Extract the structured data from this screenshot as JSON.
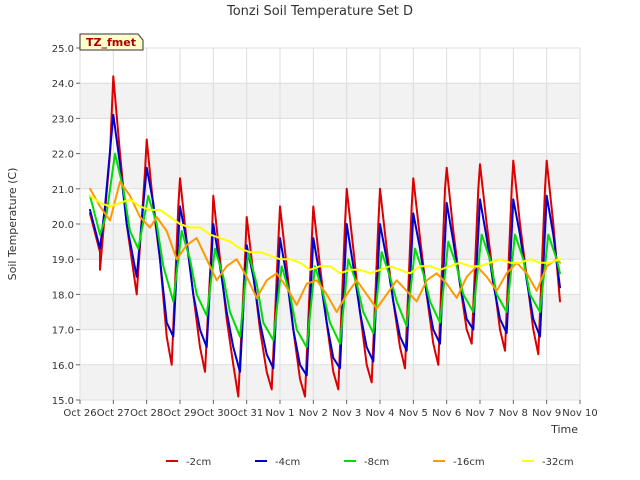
{
  "chart_data": {
    "type": "line",
    "title": "Tonzi Soil Temperature Set D",
    "xlabel": "Time",
    "ylabel": "Soil Temperature (C)",
    "annotation": "TZ_fmet",
    "ylim": [
      15.0,
      25.0
    ],
    "yticks": [
      15.0,
      16.0,
      17.0,
      18.0,
      19.0,
      20.0,
      21.0,
      22.0,
      23.0,
      24.0,
      25.0
    ],
    "ytick_labels": [
      "15.0",
      "16.0",
      "17.0",
      "18.0",
      "19.0",
      "20.0",
      "21.0",
      "22.0",
      "23.0",
      "24.0",
      "25.0"
    ],
    "xlim": [
      0,
      15
    ],
    "xtick_labels": [
      "Oct 26",
      "Oct 27",
      "Oct 28",
      "Oct 29",
      "Oct 30",
      "Oct 31",
      "Nov 1",
      "Nov 2",
      "Nov 3",
      "Nov 4",
      "Nov 5",
      "Nov 6",
      "Nov 7",
      "Nov 8",
      "Nov 9",
      "Nov 10"
    ],
    "grid": true,
    "legend_position": "bottom",
    "series": [
      {
        "name": "-2cm",
        "color": "#dd0000",
        "points": [
          [
            0.3,
            20.3
          ],
          [
            0.6,
            19.2
          ],
          [
            0.6,
            18.7
          ],
          [
            0.9,
            22.0
          ],
          [
            1.0,
            24.2
          ],
          [
            1.2,
            22.0
          ],
          [
            1.4,
            20.0
          ],
          [
            1.7,
            18.0
          ],
          [
            1.95,
            21.5
          ],
          [
            2.0,
            22.4
          ],
          [
            2.2,
            20.5
          ],
          [
            2.4,
            19.0
          ],
          [
            2.6,
            16.8
          ],
          [
            2.75,
            16.0
          ],
          [
            2.95,
            20.5
          ],
          [
            3.0,
            21.3
          ],
          [
            3.2,
            19.5
          ],
          [
            3.4,
            18.0
          ],
          [
            3.6,
            16.5
          ],
          [
            3.75,
            15.8
          ],
          [
            3.95,
            19.5
          ],
          [
            4.0,
            20.8
          ],
          [
            4.2,
            19.0
          ],
          [
            4.4,
            17.3
          ],
          [
            4.6,
            16.0
          ],
          [
            4.75,
            15.1
          ],
          [
            4.95,
            19.0
          ],
          [
            5.0,
            20.2
          ],
          [
            5.2,
            18.6
          ],
          [
            5.4,
            17.0
          ],
          [
            5.6,
            15.8
          ],
          [
            5.75,
            15.3
          ],
          [
            5.95,
            19.5
          ],
          [
            6.0,
            20.5
          ],
          [
            6.2,
            18.8
          ],
          [
            6.4,
            17.0
          ],
          [
            6.6,
            15.6
          ],
          [
            6.75,
            15.1
          ],
          [
            6.95,
            19.5
          ],
          [
            7.0,
            20.5
          ],
          [
            7.2,
            18.8
          ],
          [
            7.4,
            17.2
          ],
          [
            7.6,
            15.8
          ],
          [
            7.75,
            15.3
          ],
          [
            7.95,
            20.0
          ],
          [
            8.0,
            21.0
          ],
          [
            8.2,
            19.3
          ],
          [
            8.4,
            17.5
          ],
          [
            8.6,
            16.0
          ],
          [
            8.75,
            15.5
          ],
          [
            8.95,
            20.0
          ],
          [
            9.0,
            21.0
          ],
          [
            9.2,
            19.3
          ],
          [
            9.4,
            17.8
          ],
          [
            9.6,
            16.5
          ],
          [
            9.75,
            15.9
          ],
          [
            9.95,
            20.5
          ],
          [
            10.0,
            21.3
          ],
          [
            10.2,
            19.6
          ],
          [
            10.4,
            18.0
          ],
          [
            10.6,
            16.6
          ],
          [
            10.75,
            16.0
          ],
          [
            10.95,
            21.0
          ],
          [
            11.0,
            21.6
          ],
          [
            11.2,
            19.8
          ],
          [
            11.4,
            18.3
          ],
          [
            11.6,
            17.0
          ],
          [
            11.75,
            16.6
          ],
          [
            11.95,
            21.0
          ],
          [
            12.0,
            21.7
          ],
          [
            12.2,
            20.0
          ],
          [
            12.4,
            18.5
          ],
          [
            12.6,
            17.0
          ],
          [
            12.75,
            16.4
          ],
          [
            12.95,
            21.0
          ],
          [
            13.0,
            21.8
          ],
          [
            13.2,
            20.0
          ],
          [
            13.4,
            18.5
          ],
          [
            13.6,
            17.0
          ],
          [
            13.75,
            16.3
          ],
          [
            13.95,
            21.0
          ],
          [
            14.0,
            21.8
          ],
          [
            14.2,
            20.0
          ],
          [
            14.4,
            17.8
          ]
        ]
      },
      {
        "name": "-4cm",
        "color": "#0000cc",
        "points": [
          [
            0.3,
            20.4
          ],
          [
            0.6,
            19.3
          ],
          [
            0.75,
            20.5
          ],
          [
            1.0,
            23.1
          ],
          [
            1.2,
            21.7
          ],
          [
            1.4,
            20.0
          ],
          [
            1.7,
            18.5
          ],
          [
            2.0,
            21.6
          ],
          [
            2.2,
            20.6
          ],
          [
            2.4,
            19.0
          ],
          [
            2.6,
            17.2
          ],
          [
            2.8,
            16.8
          ],
          [
            3.0,
            20.5
          ],
          [
            3.2,
            19.5
          ],
          [
            3.4,
            18.0
          ],
          [
            3.6,
            17.0
          ],
          [
            3.8,
            16.5
          ],
          [
            4.0,
            20.0
          ],
          [
            4.2,
            18.8
          ],
          [
            4.4,
            17.5
          ],
          [
            4.6,
            16.5
          ],
          [
            4.8,
            15.8
          ],
          [
            5.0,
            19.4
          ],
          [
            5.2,
            18.5
          ],
          [
            5.4,
            17.2
          ],
          [
            5.6,
            16.3
          ],
          [
            5.8,
            15.9
          ],
          [
            6.0,
            19.6
          ],
          [
            6.2,
            18.5
          ],
          [
            6.4,
            17.0
          ],
          [
            6.6,
            16.0
          ],
          [
            6.8,
            15.7
          ],
          [
            7.0,
            19.6
          ],
          [
            7.2,
            18.5
          ],
          [
            7.4,
            17.2
          ],
          [
            7.6,
            16.2
          ],
          [
            7.8,
            15.9
          ],
          [
            8.0,
            20.0
          ],
          [
            8.2,
            18.8
          ],
          [
            8.4,
            17.5
          ],
          [
            8.6,
            16.5
          ],
          [
            8.8,
            16.1
          ],
          [
            9.0,
            20.0
          ],
          [
            9.2,
            19.0
          ],
          [
            9.4,
            17.8
          ],
          [
            9.6,
            16.8
          ],
          [
            9.8,
            16.4
          ],
          [
            10.0,
            20.3
          ],
          [
            10.2,
            19.3
          ],
          [
            10.4,
            18.0
          ],
          [
            10.6,
            17.0
          ],
          [
            10.8,
            16.6
          ],
          [
            11.0,
            20.6
          ],
          [
            11.2,
            19.5
          ],
          [
            11.4,
            18.3
          ],
          [
            11.6,
            17.3
          ],
          [
            11.8,
            17.0
          ],
          [
            12.0,
            20.7
          ],
          [
            12.2,
            19.6
          ],
          [
            12.4,
            18.3
          ],
          [
            12.6,
            17.3
          ],
          [
            12.8,
            16.9
          ],
          [
            13.0,
            20.7
          ],
          [
            13.2,
            19.7
          ],
          [
            13.4,
            18.4
          ],
          [
            13.6,
            17.3
          ],
          [
            13.8,
            16.8
          ],
          [
            14.0,
            20.8
          ],
          [
            14.2,
            19.7
          ],
          [
            14.4,
            18.2
          ]
        ]
      },
      {
        "name": "-8cm",
        "color": "#00dd00",
        "points": [
          [
            0.3,
            20.8
          ],
          [
            0.6,
            19.7
          ],
          [
            0.8,
            20.3
          ],
          [
            1.05,
            22.0
          ],
          [
            1.3,
            21.0
          ],
          [
            1.5,
            19.8
          ],
          [
            1.75,
            19.3
          ],
          [
            2.05,
            20.8
          ],
          [
            2.3,
            20.0
          ],
          [
            2.5,
            18.8
          ],
          [
            2.8,
            17.8
          ],
          [
            3.05,
            19.8
          ],
          [
            3.3,
            19.0
          ],
          [
            3.5,
            18.0
          ],
          [
            3.8,
            17.4
          ],
          [
            4.05,
            19.3
          ],
          [
            4.3,
            18.5
          ],
          [
            4.5,
            17.5
          ],
          [
            4.8,
            16.8
          ],
          [
            5.05,
            19.2
          ],
          [
            5.3,
            18.3
          ],
          [
            5.5,
            17.2
          ],
          [
            5.8,
            16.7
          ],
          [
            6.05,
            18.8
          ],
          [
            6.3,
            18.0
          ],
          [
            6.5,
            17.0
          ],
          [
            6.8,
            16.5
          ],
          [
            7.05,
            18.8
          ],
          [
            7.3,
            18.0
          ],
          [
            7.5,
            17.2
          ],
          [
            7.8,
            16.6
          ],
          [
            8.05,
            19.0
          ],
          [
            8.3,
            18.3
          ],
          [
            8.5,
            17.5
          ],
          [
            8.8,
            16.9
          ],
          [
            9.05,
            19.2
          ],
          [
            9.3,
            18.5
          ],
          [
            9.5,
            17.8
          ],
          [
            9.8,
            17.1
          ],
          [
            10.05,
            19.3
          ],
          [
            10.3,
            18.6
          ],
          [
            10.5,
            17.8
          ],
          [
            10.8,
            17.2
          ],
          [
            11.05,
            19.5
          ],
          [
            11.3,
            18.8
          ],
          [
            11.5,
            18.0
          ],
          [
            11.8,
            17.5
          ],
          [
            12.05,
            19.7
          ],
          [
            12.3,
            19.0
          ],
          [
            12.5,
            18.0
          ],
          [
            12.8,
            17.5
          ],
          [
            13.05,
            19.7
          ],
          [
            13.3,
            19.0
          ],
          [
            13.5,
            18.0
          ],
          [
            13.8,
            17.5
          ],
          [
            14.05,
            19.7
          ],
          [
            14.3,
            19.0
          ],
          [
            14.4,
            18.6
          ]
        ]
      },
      {
        "name": "-16cm",
        "color": "#ff9900",
        "points": [
          [
            0.3,
            21.0
          ],
          [
            0.6,
            20.5
          ],
          [
            0.9,
            20.1
          ],
          [
            1.2,
            21.2
          ],
          [
            1.5,
            20.8
          ],
          [
            1.8,
            20.2
          ],
          [
            2.1,
            19.9
          ],
          [
            2.3,
            20.2
          ],
          [
            2.6,
            19.8
          ],
          [
            2.9,
            19.0
          ],
          [
            3.2,
            19.4
          ],
          [
            3.5,
            19.6
          ],
          [
            3.8,
            19.0
          ],
          [
            4.1,
            18.4
          ],
          [
            4.4,
            18.8
          ],
          [
            4.7,
            19.0
          ],
          [
            5.0,
            18.5
          ],
          [
            5.3,
            17.9
          ],
          [
            5.6,
            18.4
          ],
          [
            5.9,
            18.6
          ],
          [
            6.2,
            18.2
          ],
          [
            6.5,
            17.7
          ],
          [
            6.8,
            18.3
          ],
          [
            7.1,
            18.4
          ],
          [
            7.4,
            18.0
          ],
          [
            7.7,
            17.5
          ],
          [
            8.0,
            18.0
          ],
          [
            8.3,
            18.4
          ],
          [
            8.6,
            18.0
          ],
          [
            8.9,
            17.6
          ],
          [
            9.2,
            18.0
          ],
          [
            9.5,
            18.4
          ],
          [
            9.8,
            18.1
          ],
          [
            10.1,
            17.8
          ],
          [
            10.4,
            18.4
          ],
          [
            10.7,
            18.6
          ],
          [
            11.0,
            18.3
          ],
          [
            11.3,
            17.9
          ],
          [
            11.6,
            18.5
          ],
          [
            11.9,
            18.8
          ],
          [
            12.2,
            18.5
          ],
          [
            12.5,
            18.1
          ],
          [
            12.8,
            18.6
          ],
          [
            13.1,
            18.9
          ],
          [
            13.4,
            18.6
          ],
          [
            13.7,
            18.1
          ],
          [
            14.0,
            18.8
          ],
          [
            14.3,
            19.0
          ],
          [
            14.4,
            18.9
          ]
        ]
      },
      {
        "name": "-32cm",
        "color": "#ffff00",
        "points": [
          [
            0.3,
            20.8
          ],
          [
            0.6,
            20.6
          ],
          [
            0.9,
            20.5
          ],
          [
            1.2,
            20.6
          ],
          [
            1.5,
            20.7
          ],
          [
            1.8,
            20.5
          ],
          [
            2.1,
            20.4
          ],
          [
            2.4,
            20.4
          ],
          [
            2.7,
            20.2
          ],
          [
            3.0,
            20.0
          ],
          [
            3.3,
            19.9
          ],
          [
            3.6,
            19.9
          ],
          [
            3.9,
            19.7
          ],
          [
            4.2,
            19.6
          ],
          [
            4.5,
            19.5
          ],
          [
            4.8,
            19.3
          ],
          [
            5.1,
            19.2
          ],
          [
            5.4,
            19.2
          ],
          [
            5.7,
            19.1
          ],
          [
            6.0,
            19.0
          ],
          [
            6.3,
            19.0
          ],
          [
            6.6,
            18.9
          ],
          [
            6.9,
            18.7
          ],
          [
            7.2,
            18.8
          ],
          [
            7.5,
            18.8
          ],
          [
            7.8,
            18.6
          ],
          [
            8.1,
            18.7
          ],
          [
            8.4,
            18.7
          ],
          [
            8.7,
            18.6
          ],
          [
            9.0,
            18.7
          ],
          [
            9.3,
            18.8
          ],
          [
            9.6,
            18.7
          ],
          [
            9.9,
            18.6
          ],
          [
            10.2,
            18.8
          ],
          [
            10.5,
            18.8
          ],
          [
            10.8,
            18.7
          ],
          [
            11.1,
            18.8
          ],
          [
            11.4,
            18.9
          ],
          [
            11.7,
            18.8
          ],
          [
            12.0,
            18.8
          ],
          [
            12.3,
            18.9
          ],
          [
            12.6,
            19.0
          ],
          [
            12.9,
            18.9
          ],
          [
            13.2,
            18.9
          ],
          [
            13.5,
            19.0
          ],
          [
            13.8,
            18.9
          ],
          [
            14.1,
            18.9
          ],
          [
            14.4,
            19.0
          ]
        ]
      }
    ]
  }
}
